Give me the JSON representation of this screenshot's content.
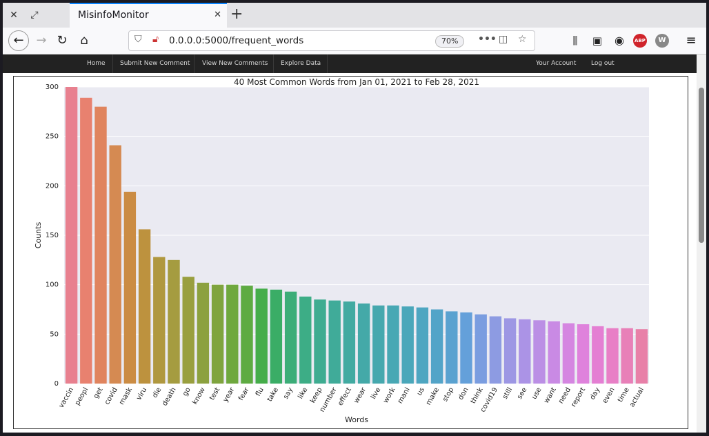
{
  "browser": {
    "tab_title": "MisinfoMonitor",
    "url": "0.0.0.0:5000/frequent_words",
    "zoom": "70%",
    "adblock_label": "ABP",
    "ext_label": "W"
  },
  "site_nav": {
    "home": "Home",
    "submit": "Submit New Comment",
    "view": "View New Comments",
    "explore": "Explore Data",
    "account": "Your Account",
    "logout": "Log out"
  },
  "chart_data": {
    "type": "bar",
    "title": "40 Most Common Words from Jan 01, 2021 to Feb 28, 2021",
    "xlabel": "Words",
    "ylabel": "Counts",
    "ylim": [
      0,
      300
    ],
    "yticks": [
      0,
      50,
      100,
      150,
      200,
      250,
      300
    ],
    "grid": true,
    "categories": [
      "vaccin",
      "peopl",
      "get",
      "covid",
      "mask",
      "viru",
      "die",
      "death",
      "go",
      "know",
      "test",
      "year",
      "fear",
      "flu",
      "take",
      "say",
      "like",
      "keep",
      "number",
      "effect",
      "wear",
      "live",
      "work",
      "mani",
      "us",
      "make",
      "stop",
      "don",
      "think",
      "covid19",
      "still",
      "see",
      "use",
      "want",
      "need",
      "report",
      "day",
      "even",
      "time",
      "actual"
    ],
    "values": [
      300,
      289,
      280,
      241,
      194,
      156,
      128,
      125,
      108,
      102,
      100,
      100,
      99,
      96,
      95,
      93,
      88,
      85,
      84,
      83,
      81,
      79,
      79,
      78,
      77,
      75,
      73,
      72,
      70,
      68,
      66,
      65,
      64,
      63,
      61,
      60,
      58,
      56,
      56,
      55
    ],
    "colors": [
      "#e8808f",
      "#e8816f",
      "#e0845e",
      "#d58a52",
      "#cb8c44",
      "#bd923e",
      "#b0983f",
      "#a59c40",
      "#999f3f",
      "#8ca13f",
      "#7fa43e",
      "#6fa83e",
      "#5eab42",
      "#45ad4a",
      "#3aad66",
      "#3cad78",
      "#3dad86",
      "#3fac91",
      "#40ab99",
      "#42aaa1",
      "#44a9a8",
      "#46a8ae",
      "#48a8b4",
      "#4aa7ba",
      "#4ea6c1",
      "#53a4c8",
      "#5aa2d0",
      "#64a0da",
      "#7a9de0",
      "#8d9be2",
      "#9d97e4",
      "#ab93e6",
      "#bb8fe5",
      "#c98ae4",
      "#d586e1",
      "#df82dc",
      "#e47fd3",
      "#e87fc6",
      "#e880b8",
      "#e880a8"
    ]
  }
}
